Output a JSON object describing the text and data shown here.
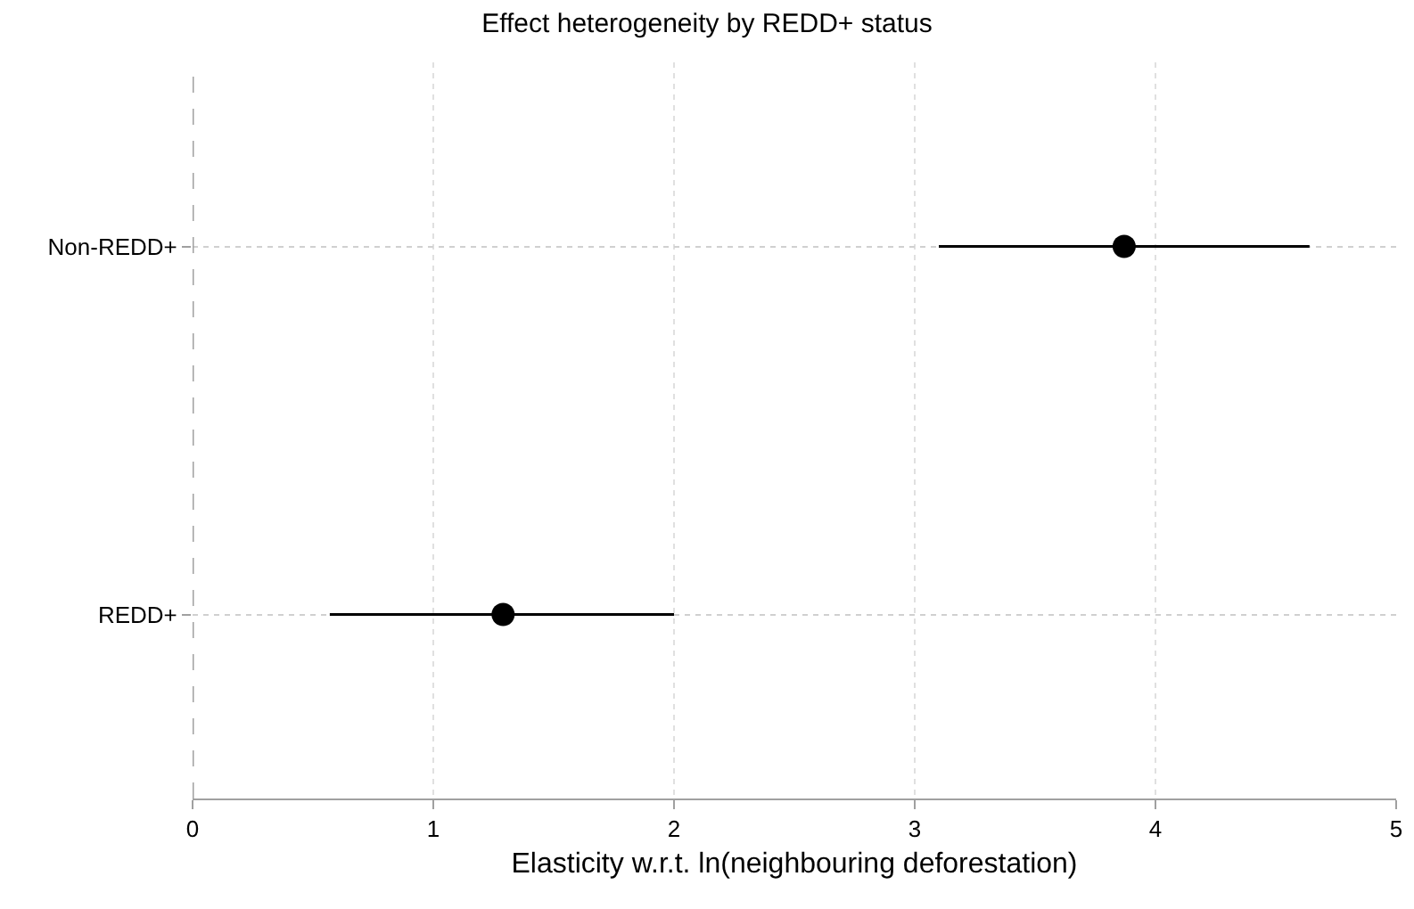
{
  "chart_data": {
    "type": "scatter",
    "title": "Effect heterogeneity by REDD+ status",
    "xlabel": "Elasticity w.r.t. ln(neighbouring deforestation)",
    "orientation": "horizontal",
    "categories": [
      "Non-REDD+",
      "REDD+"
    ],
    "values": [
      3.87,
      1.29
    ],
    "errors": [
      [
        3.1,
        4.64
      ],
      [
        0.57,
        2.0
      ]
    ],
    "color": "#000000",
    "xlim": [
      0,
      5
    ],
    "xticks": [
      0,
      1,
      2,
      3,
      4,
      5
    ],
    "ref_lines": [
      {
        "axis": "x",
        "value": 0,
        "color": "#a0a0a0",
        "line_style": "dashed"
      }
    ],
    "grid": true,
    "marker": "circle",
    "legend": false
  }
}
